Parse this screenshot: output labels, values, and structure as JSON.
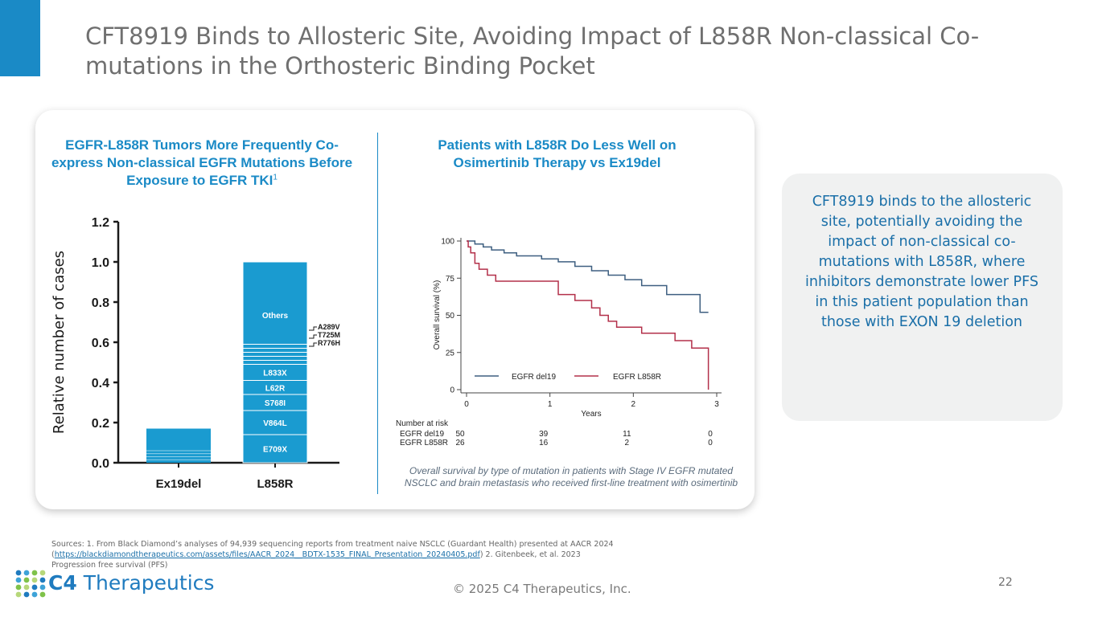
{
  "slide": {
    "title": "CFT8919 Binds to Allosteric Site, Avoiding Impact of L858R Non-classical Co-mutations in the Orthosteric Binding Pocket",
    "accent_color": "#1a8ac6",
    "page_number": "22",
    "copyright": "© 2025 C4 Therapeutics, Inc."
  },
  "left_panel": {
    "title": "EGFR-L858R Tumors More Frequently Co-express Non-classical EGFR Mutations Before Exposure to EGFR TKI",
    "title_sup": "1"
  },
  "right_panel": {
    "title": "Patients with L858R Do Less Well on Osimertinib Therapy vs Ex19del",
    "caption": "Overall survival by type of mutation in patients with Stage IV EGFR mutated NSCLC and brain metastasis who received first-line treatment with osimertinib"
  },
  "callout": {
    "text": "CFT8919 binds to the allosteric site, potentially avoiding the impact of non-classical co-mutations with L858R, where inhibitors demonstrate lower PFS in this patient population than those with EXON 19 deletion"
  },
  "sources": {
    "line1": "Sources: 1. From Black Diamond’s analyses of 94,939 sequencing reports from treatment naive NSCLC (Guardant Health) presented at AACR 2024",
    "link": "https://blackdiamondtherapeutics.com/assets/files/AACR_2024__BDTX-1535_FINAL_Presentation_20240405.pdf",
    "line2_suffix": ") 2. Gitenbeek, et al. 2023",
    "line3": "Progression free survival (PFS)"
  },
  "logo": {
    "brand_bold": "C4",
    "brand_rest": " Therapeutics"
  },
  "chart_data": [
    {
      "type": "bar",
      "stacked": true,
      "ylabel": "Relative number of cases",
      "xlabel": "",
      "ylim": [
        0,
        1.2
      ],
      "yticks": [
        "0.0",
        "0.2",
        "0.4",
        "0.6",
        "0.8",
        "1.0",
        "1.2"
      ],
      "categories": [
        "Ex19del",
        "L858R"
      ],
      "totals": [
        0.17,
        1.0
      ],
      "segments": {
        "Ex19del": [
          0.17
        ],
        "L858R": [
          {
            "label": "E709X",
            "value": 0.14
          },
          {
            "label": "V864L",
            "value": 0.12
          },
          {
            "label": "S768I",
            "value": 0.08
          },
          {
            "label": "L62R",
            "value": 0.07
          },
          {
            "label": "L833X",
            "value": 0.08
          },
          {
            "label": "",
            "value": 0.02
          },
          {
            "label": "",
            "value": 0.02
          },
          {
            "label": "",
            "value": 0.02
          },
          {
            "label": "",
            "value": 0.02
          },
          {
            "label": "",
            "value": 0.02
          },
          {
            "label": "Others",
            "value": 0.41
          }
        ]
      },
      "annotations": [
        "A289V",
        "T725M",
        "R776H"
      ],
      "bar_color": "#1a9bd0"
    },
    {
      "type": "line",
      "step": true,
      "xlabel": "Years",
      "ylabel": "Overall survival (%)",
      "xlim": [
        0,
        3
      ],
      "ylim": [
        0,
        100
      ],
      "xticks": [
        "0",
        "1",
        "2",
        "3"
      ],
      "yticks": [
        "0",
        "25",
        "50",
        "75",
        "100"
      ],
      "series": [
        {
          "name": "EGFR del19",
          "color": "#3e5f80",
          "x": [
            0,
            0.1,
            0.2,
            0.3,
            0.45,
            0.6,
            0.9,
            1.1,
            1.3,
            1.5,
            1.7,
            1.9,
            2.1,
            2.4,
            2.8
          ],
          "y": [
            100,
            98,
            96,
            94,
            92,
            90,
            88,
            86,
            83,
            80,
            77,
            74,
            70,
            64,
            52
          ]
        },
        {
          "name": "EGFR L858R",
          "color": "#b3304a",
          "x": [
            0,
            0.02,
            0.05,
            0.1,
            0.15,
            0.25,
            0.35,
            1.1,
            1.3,
            1.5,
            1.6,
            1.7,
            1.8,
            2.1,
            2.5,
            2.7,
            2.9
          ],
          "y": [
            100,
            96,
            92,
            85,
            81,
            77,
            73,
            64,
            60,
            55,
            50,
            46,
            42,
            38,
            33,
            28,
            0
          ]
        }
      ],
      "risk_table": {
        "title": "Number at risk",
        "rows": [
          {
            "label": "EGFR del19",
            "values": [
              "50",
              "39",
              "11",
              "0"
            ]
          },
          {
            "label": "EGFR L858R",
            "values": [
              "26",
              "16",
              "2",
              "0"
            ]
          }
        ]
      }
    }
  ]
}
